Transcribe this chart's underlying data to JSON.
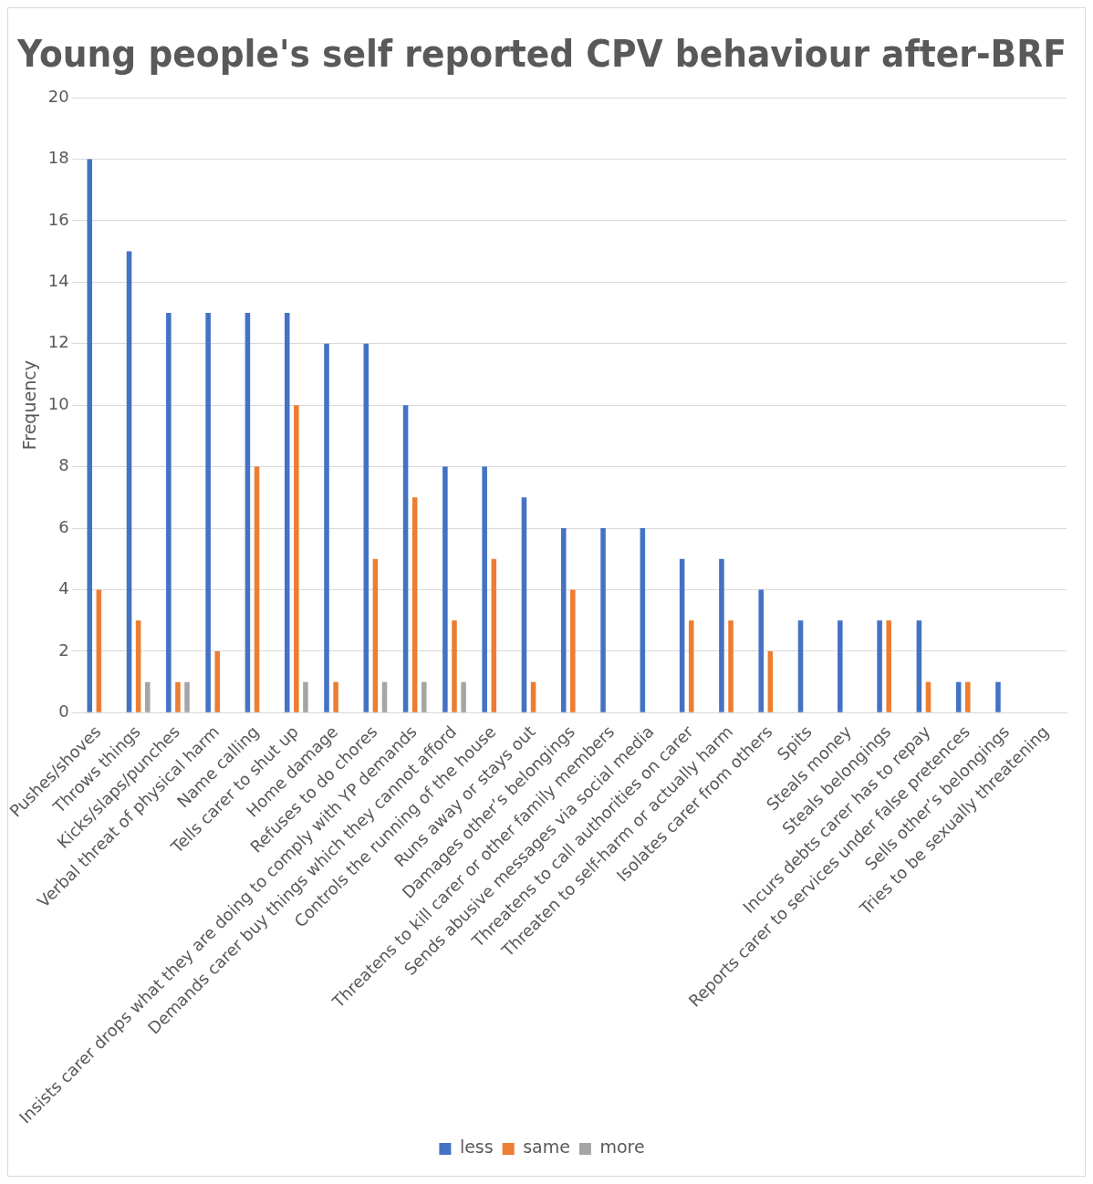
{
  "chart_data": {
    "type": "bar",
    "title": "Young people's self reported CPV behaviour after-BRF",
    "ylabel": "Frequency",
    "categories": [
      "Pushes/shoves",
      "Throws things",
      "Kicks/slaps/punches",
      "Verbal threat of physical harm",
      "Name calling",
      "Tells carer to shut up",
      "Home damage",
      "Refuses to do chores",
      "Insists carer drops what they are doing to comply with YP demands",
      "Demands carer buy things which they cannot afford",
      "Controls the running of the house",
      "Runs away or stays out",
      "Damages other’s belongings",
      "Threatens to kill carer or other family members",
      "Sends abusive messages via social media",
      "Threatens to call authorities on carer",
      "Threaten to self-harm or actually harm",
      "Isolates carer from others",
      "Spits",
      "Steals money",
      "Steals belongings",
      "Incurs debts carer has to repay",
      "Reports carer to services under false pretences",
      "Sells other’s belongings",
      "Tries to be sexually threatening"
    ],
    "series": [
      {
        "name": "less",
        "color": "#4472c4",
        "values": [
          18,
          15,
          13,
          13,
          13,
          13,
          12,
          12,
          10,
          8,
          8,
          7,
          6,
          6,
          6,
          5,
          5,
          4,
          3,
          3,
          3,
          3,
          1,
          1,
          0
        ]
      },
      {
        "name": "same",
        "color": "#ed7d31",
        "values": [
          4,
          3,
          1,
          2,
          8,
          10,
          1,
          5,
          7,
          3,
          5,
          1,
          4,
          0,
          0,
          3,
          3,
          2,
          0,
          0,
          3,
          1,
          1,
          0,
          0
        ]
      },
      {
        "name": "more",
        "color": "#a5a5a5",
        "values": [
          0,
          1,
          1,
          0,
          0,
          1,
          0,
          1,
          1,
          1,
          0,
          0,
          0,
          0,
          0,
          0,
          0,
          0,
          0,
          0,
          0,
          0,
          0,
          0,
          0
        ]
      }
    ],
    "ylim": [
      0,
      20
    ],
    "yticks": [
      0,
      2,
      4,
      6,
      8,
      10,
      12,
      14,
      16,
      18,
      20
    ],
    "grid": "y",
    "legend": "bottom"
  }
}
